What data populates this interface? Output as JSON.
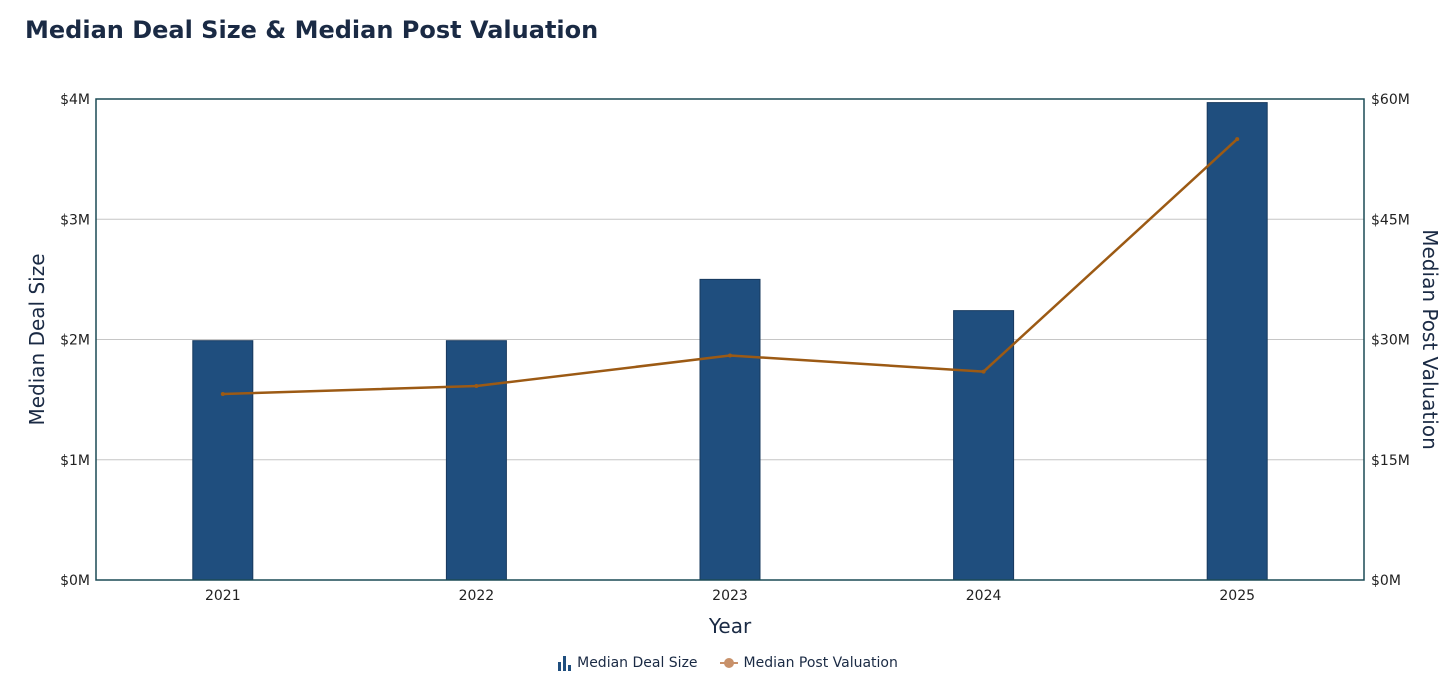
{
  "chart_data": {
    "type": "bar+line",
    "title": "Median Deal Size & Median Post Valuation",
    "xlabel": "Year",
    "ylabel_left": "Median Deal Size",
    "ylabel_right": "Median Post Valuation",
    "categories": [
      "2021",
      "2022",
      "2023",
      "2024",
      "2025"
    ],
    "ylim_left": [
      0,
      4
    ],
    "ylim_right": [
      0,
      60
    ],
    "left_ticks": [
      "$0M",
      "$1M",
      "$2M",
      "$3M",
      "$4M"
    ],
    "right_ticks": [
      "$0M",
      "$15M",
      "$30M",
      "$45M",
      "$60M"
    ],
    "series": [
      {
        "name": "Median Deal Size",
        "type": "bar",
        "axis": "left",
        "unit": "$M",
        "values": [
          1.99,
          1.99,
          2.5,
          2.24,
          3.97
        ],
        "color": "#1f4e7e"
      },
      {
        "name": "Median Post Valuation",
        "type": "line",
        "axis": "right",
        "unit": "$M",
        "values": [
          23.2,
          24.2,
          28.0,
          26.0,
          55.0
        ],
        "color": "#9c5a14"
      }
    ],
    "grid": true,
    "legend_position": "bottom-center"
  },
  "legend": {
    "bar_label": "Median Deal Size",
    "line_label": "Median Post Valuation"
  }
}
